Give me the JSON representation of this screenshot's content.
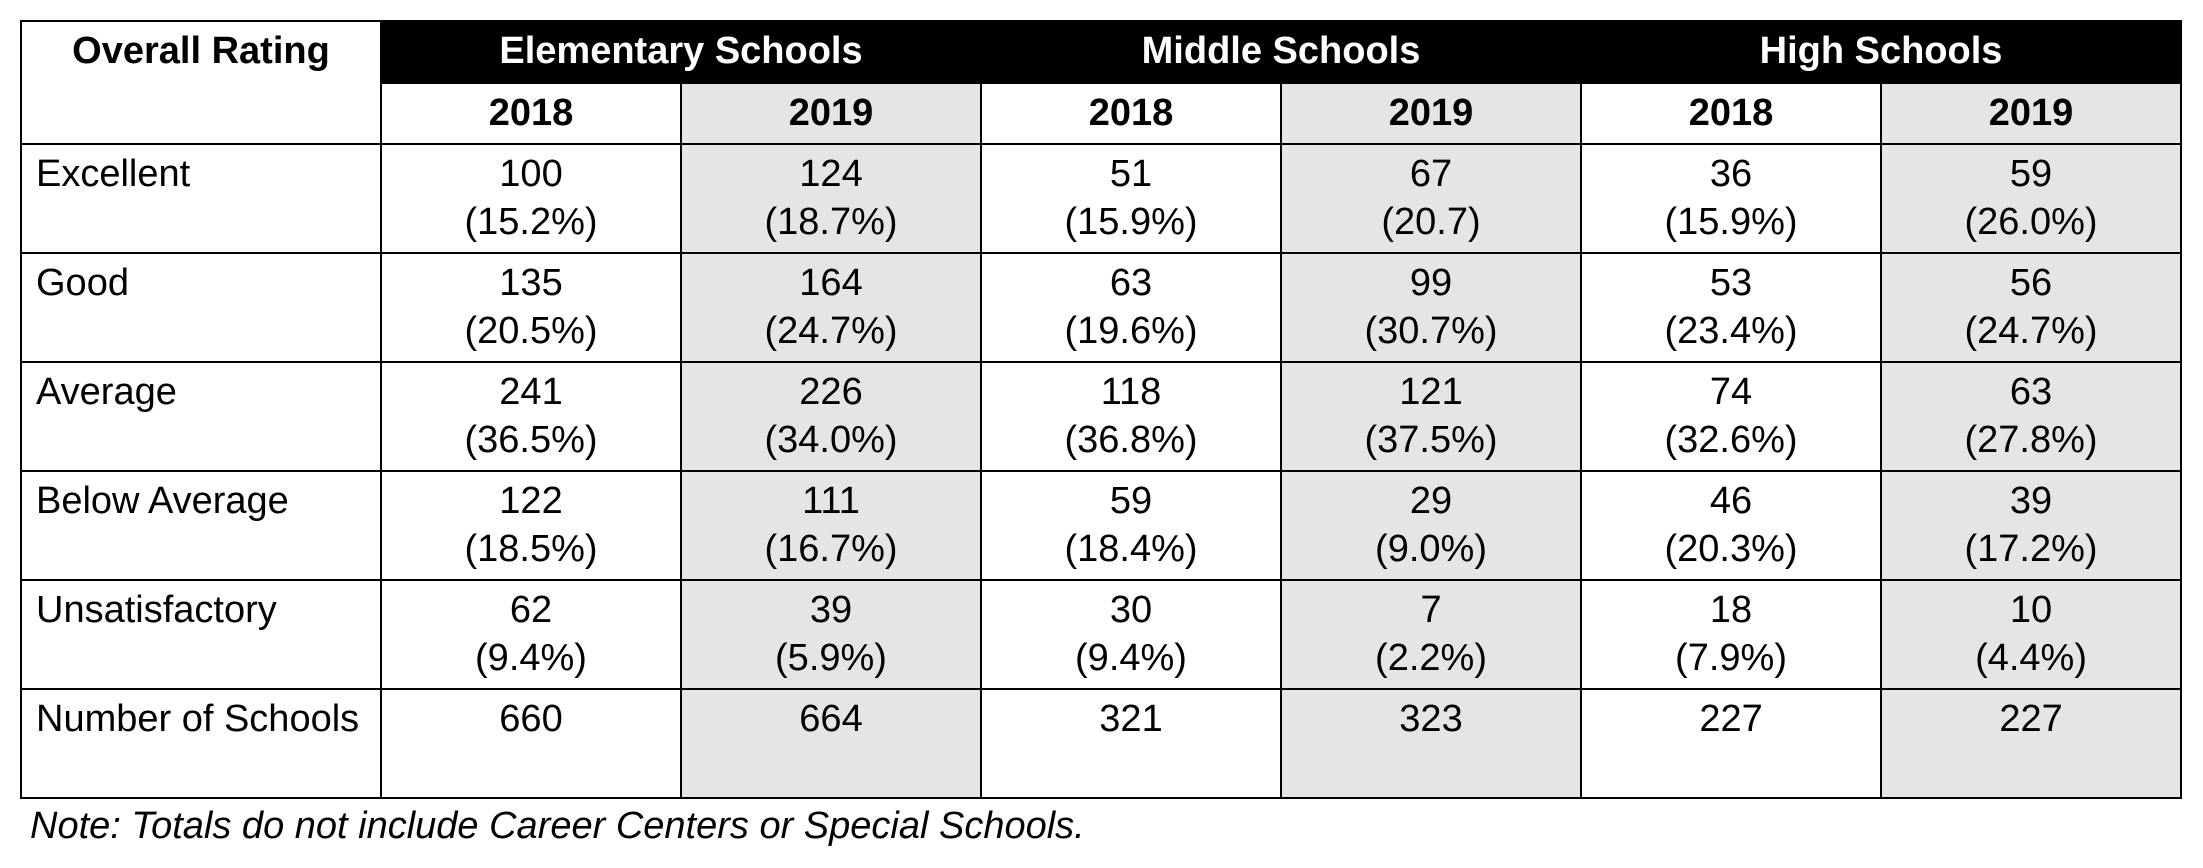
{
  "type": "table",
  "colors": {
    "header_bg": "#000000",
    "header_fg": "#ffffff",
    "shade_bg": "#e5e5e5",
    "border": "#000000",
    "background": "#ffffff",
    "text": "#000000"
  },
  "typography": {
    "font_family": "Arial",
    "cell_fontsize_pt": 28,
    "note_fontsize_pt": 28
  },
  "labels": {
    "overall_rating": "Overall Rating",
    "groups": [
      "Elementary Schools",
      "Middle Schools",
      "High Schools"
    ],
    "years": [
      "2018",
      "2019",
      "2018",
      "2019",
      "2018",
      "2019"
    ]
  },
  "shaded_year_cols": [
    1,
    3,
    5
  ],
  "rows": [
    {
      "label": "Excellent",
      "cells": [
        {
          "count": "100",
          "pct": "(15.2%)"
        },
        {
          "count": "124",
          "pct": "(18.7%)"
        },
        {
          "count": "51",
          "pct": "(15.9%)"
        },
        {
          "count": "67",
          "pct": "(20.7)"
        },
        {
          "count": "36",
          "pct": "(15.9%)"
        },
        {
          "count": "59",
          "pct": "(26.0%)"
        }
      ]
    },
    {
      "label": "Good",
      "cells": [
        {
          "count": "135",
          "pct": "(20.5%)"
        },
        {
          "count": "164",
          "pct": "(24.7%)"
        },
        {
          "count": "63",
          "pct": "(19.6%)"
        },
        {
          "count": "99",
          "pct": "(30.7%)"
        },
        {
          "count": "53",
          "pct": "(23.4%)"
        },
        {
          "count": "56",
          "pct": "(24.7%)"
        }
      ]
    },
    {
      "label": "Average",
      "cells": [
        {
          "count": "241",
          "pct": "(36.5%)"
        },
        {
          "count": "226",
          "pct": "(34.0%)"
        },
        {
          "count": "118",
          "pct": "(36.8%)"
        },
        {
          "count": "121",
          "pct": "(37.5%)"
        },
        {
          "count": "74",
          "pct": "(32.6%)"
        },
        {
          "count": "63",
          "pct": "(27.8%)"
        }
      ]
    },
    {
      "label": "Below Average",
      "cells": [
        {
          "count": "122",
          "pct": "(18.5%)"
        },
        {
          "count": "111",
          "pct": "(16.7%)"
        },
        {
          "count": "59",
          "pct": "(18.4%)"
        },
        {
          "count": "29",
          "pct": "(9.0%)"
        },
        {
          "count": "46",
          "pct": "(20.3%)"
        },
        {
          "count": "39",
          "pct": "(17.2%)"
        }
      ]
    },
    {
      "label": "Unsatisfactory",
      "cells": [
        {
          "count": "62",
          "pct": "(9.4%)"
        },
        {
          "count": "39",
          "pct": "(5.9%)"
        },
        {
          "count": "30",
          "pct": "(9.4%)"
        },
        {
          "count": "7",
          "pct": "(2.2%)"
        },
        {
          "count": "18",
          "pct": "(7.9%)"
        },
        {
          "count": "10",
          "pct": "(4.4%)"
        }
      ]
    },
    {
      "label": "Number of Schools",
      "cells": [
        {
          "count": "660",
          "pct": ""
        },
        {
          "count": "664",
          "pct": ""
        },
        {
          "count": "321",
          "pct": ""
        },
        {
          "count": "323",
          "pct": ""
        },
        {
          "count": "227",
          "pct": ""
        },
        {
          "count": "227",
          "pct": ""
        }
      ]
    }
  ],
  "note": "Note: Totals do not include Career Centers or Special Schools."
}
